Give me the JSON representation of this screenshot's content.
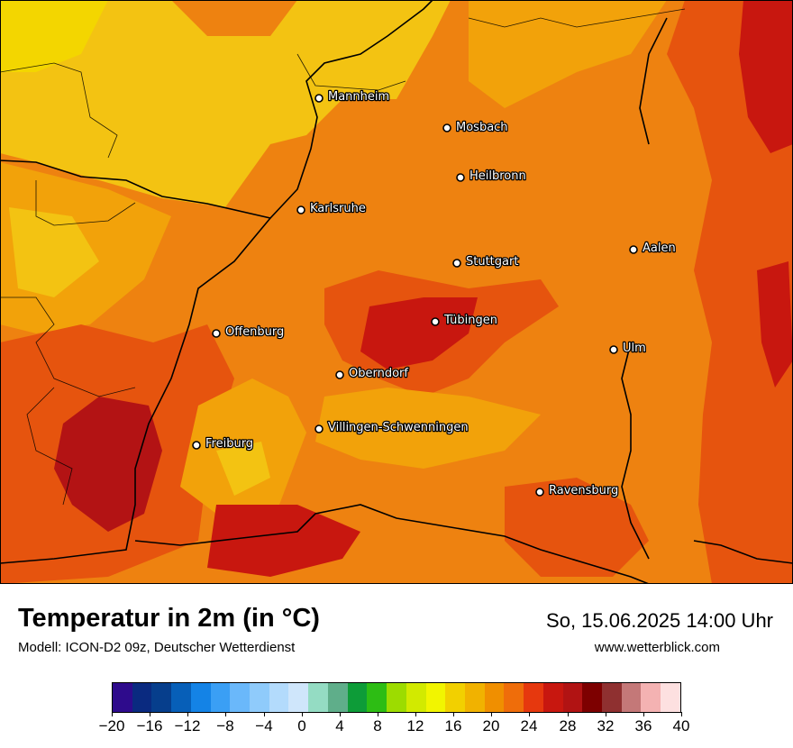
{
  "title": "Temperatur in 2m (in °C)",
  "subtitle": "Modell: ICON-D2 09z, Deutscher Wetterdienst",
  "datetime": "So, 15.06.2025 14:00 Uhr",
  "website": "www.wetterblick.com",
  "cities": [
    {
      "name": "Mannheim"
    },
    {
      "name": "Mosbach"
    },
    {
      "name": "Heilbronn"
    },
    {
      "name": "Karlsruhe"
    },
    {
      "name": "Aalen"
    },
    {
      "name": "Stuttgart"
    },
    {
      "name": "Tübingen"
    },
    {
      "name": "Offenburg"
    },
    {
      "name": "Ulm"
    },
    {
      "name": "Oberndorf"
    },
    {
      "name": "Villingen-Schwenningen"
    },
    {
      "name": "Freiburg"
    },
    {
      "name": "Ravensburg"
    }
  ],
  "legend": {
    "ticks": [
      "−20",
      "−16",
      "−12",
      "−8",
      "−4",
      "0",
      "4",
      "8",
      "12",
      "16",
      "20",
      "24",
      "28",
      "32",
      "36",
      "40"
    ],
    "colors": [
      "#2e0b8c",
      "#0a2a80",
      "#063e8c",
      "#075fb8",
      "#1483e6",
      "#3a9ff5",
      "#6ab8fa",
      "#8fcbfb",
      "#b3dbfc",
      "#cfe6fb",
      "#94dcc3",
      "#5fae8a",
      "#0d9c38",
      "#2dbd14",
      "#9ddc00",
      "#d2ea00",
      "#f2f500",
      "#f2d000",
      "#f1b200",
      "#f08f00",
      "#ef6d0a",
      "#e6380e",
      "#c8170f",
      "#b11313",
      "#7d0000",
      "#8f3030",
      "#c47878",
      "#f4b2b2",
      "#fde0e0"
    ]
  },
  "map_colors": {
    "t16": "#f3c312",
    "t18": "#f2a20a",
    "t20": "#ee8210",
    "t22": "#e6540e",
    "t24": "#e23b0d",
    "t26": "#c8170f",
    "t28": "#b31314"
  }
}
